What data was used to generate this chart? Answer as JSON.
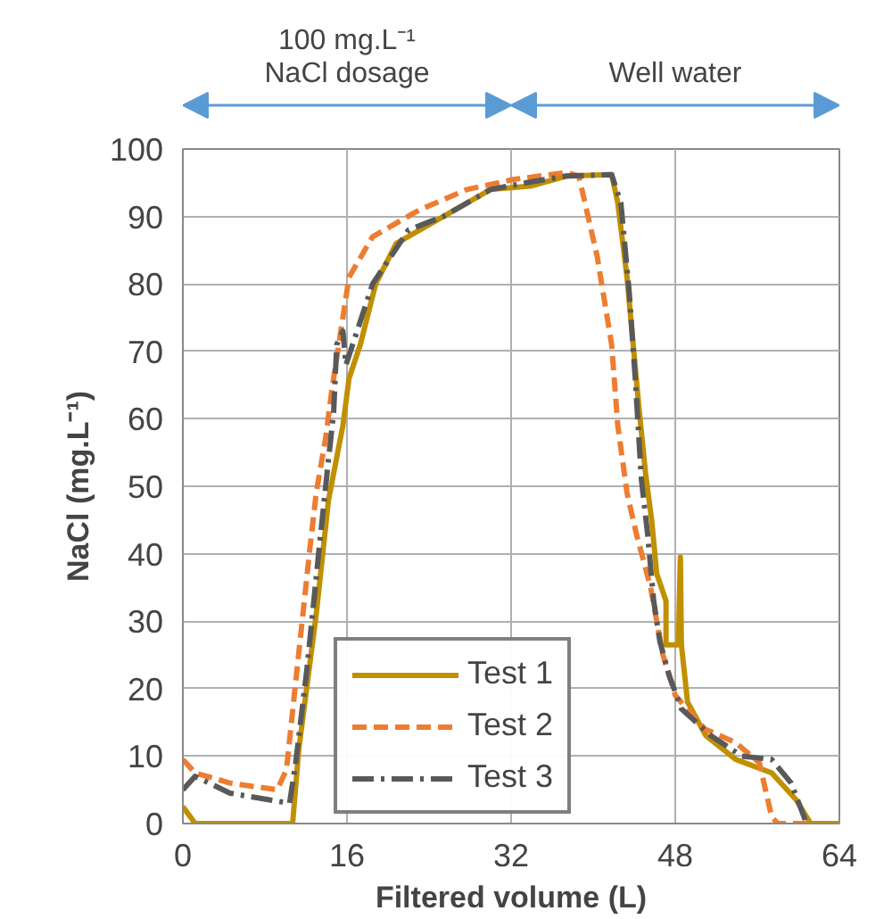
{
  "chart_data": {
    "type": "line",
    "xlabel": "Filtered volume (L)",
    "ylabel": "NaCl (mg.L⁻¹)",
    "xlim": [
      0,
      64
    ],
    "xticks": [
      0,
      16,
      32,
      48,
      64
    ],
    "ylim": [
      0,
      100
    ],
    "yticks": [
      0,
      10,
      20,
      30,
      40,
      50,
      60,
      70,
      80,
      90,
      100
    ],
    "grid": true,
    "legend": "bottom",
    "marker": "none",
    "annotations": [
      "100 mg.L⁻¹\nNaCl dosage",
      "Well water"
    ],
    "series": [
      {
        "name": "Test 1",
        "color": "#c09000",
        "line_style": "solid",
        "x": [
          0,
          1.2,
          10.7,
          11.3,
          13,
          14.2,
          15.6,
          16.2,
          17.3,
          18.8,
          20.8,
          25.4,
          30,
          33.9,
          37.4,
          41.8,
          42.4,
          43.3,
          43.9,
          44.5,
          45.1,
          45.7,
          46.2,
          47.1,
          47.1,
          48.3,
          48.5,
          48.6,
          49.2,
          51,
          53.9,
          57.4,
          59.8,
          61.2,
          64
        ],
        "values": [
          2.5,
          0,
          0,
          11,
          31,
          48,
          59,
          66,
          71,
          80,
          86,
          90,
          94,
          94.5,
          96,
          96.2,
          92,
          81,
          71,
          61,
          52,
          45,
          37,
          33,
          26.5,
          26.5,
          39.5,
          26.5,
          18,
          13,
          9.5,
          7.5,
          3.5,
          0,
          0
        ]
      },
      {
        "name": "Test 2",
        "color": "#ed7d31",
        "line_style": "dashed",
        "x": [
          0,
          1.2,
          4.6,
          9.2,
          10.1,
          11,
          12.4,
          13,
          13.9,
          14.5,
          15.6,
          16.2,
          18.5,
          23.1,
          27.7,
          32.3,
          37.4,
          38.6,
          40.4,
          41.8,
          42.4,
          43.3,
          44.2,
          45.6,
          46.8,
          48,
          50.9,
          53.9,
          56.2,
          57.4,
          58,
          61
        ],
        "values": [
          9.5,
          7.5,
          6,
          5,
          8,
          21,
          41,
          49,
          57,
          64,
          75,
          81,
          87,
          91,
          94,
          95.5,
          96.5,
          96,
          84,
          71,
          59,
          49,
          43,
          35,
          25,
          19,
          14,
          12,
          9,
          1,
          0,
          0
        ]
      },
      {
        "name": "Test 3",
        "color": "#595959",
        "line_style": "dashdot",
        "x": [
          0,
          1.2,
          4.6,
          10.4,
          11,
          12.1,
          13.3,
          14.2,
          14.7,
          15,
          15.6,
          15.9,
          18.5,
          22,
          25.4,
          30,
          33.5,
          37.4,
          41.8,
          42.7,
          43.5,
          44.1,
          44.7,
          45.3,
          45.9,
          46.5,
          47.4,
          48.6,
          51.5,
          54.5,
          57.4,
          59.3,
          60.8
        ],
        "values": [
          5,
          7,
          4.5,
          3,
          9,
          23,
          41,
          54,
          61,
          71,
          73,
          68,
          80,
          88,
          90,
          94,
          95,
          96,
          96.2,
          92,
          79,
          66,
          51,
          43,
          33,
          27,
          22,
          17,
          13,
          10,
          9.5,
          6,
          0
        ]
      }
    ]
  }
}
